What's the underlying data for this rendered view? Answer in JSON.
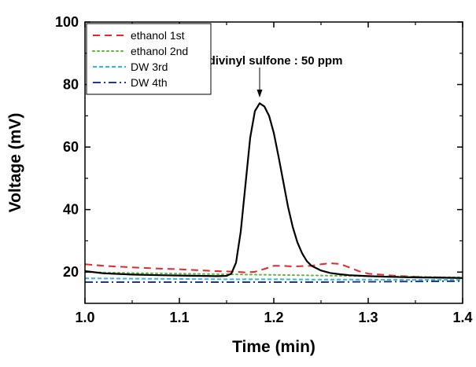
{
  "chart_data": {
    "type": "line",
    "title": "",
    "xlabel": "Time (min)",
    "ylabel": "Voltage (mV)",
    "xlim": [
      1.0,
      1.4
    ],
    "ylim": [
      10,
      100
    ],
    "xticks": [
      1.0,
      1.1,
      1.2,
      1.3,
      1.4
    ],
    "xtick_labels": [
      "1.0",
      "1.1",
      "1.2",
      "1.3",
      "1.4"
    ],
    "yticks": [
      20,
      40,
      60,
      80,
      100
    ],
    "ytick_labels": [
      "20",
      "40",
      "60",
      "80",
      "100"
    ],
    "grid": false,
    "legend_position": "top-left",
    "annotation": {
      "text": "divinyl sulfone : 50 ppm",
      "x": 1.185,
      "y": 74
    },
    "series": [
      {
        "name": "ethanol 1st",
        "color": "#e8262b",
        "dash": "dashed",
        "x": [
          1.0,
          1.02,
          1.05,
          1.08,
          1.1,
          1.12,
          1.14,
          1.15,
          1.16,
          1.17,
          1.18,
          1.19,
          1.2,
          1.21,
          1.22,
          1.23,
          1.24,
          1.25,
          1.26,
          1.27,
          1.28,
          1.29,
          1.3,
          1.33,
          1.36,
          1.4
        ],
        "values": [
          22.5,
          22.0,
          21.5,
          21.1,
          20.9,
          20.6,
          20.3,
          20.2,
          20.1,
          19.9,
          20.1,
          21.0,
          22.0,
          22.0,
          21.8,
          21.9,
          22.0,
          22.5,
          22.8,
          22.6,
          21.5,
          20.3,
          19.5,
          18.8,
          18.4,
          18.1
        ]
      },
      {
        "name": "ethanol 2nd",
        "color": "#5db83a",
        "dash": "dotted",
        "x": [
          1.0,
          1.05,
          1.1,
          1.15,
          1.2,
          1.25,
          1.3,
          1.35,
          1.4
        ],
        "values": [
          20.0,
          19.7,
          19.5,
          19.3,
          19.1,
          18.9,
          18.7,
          18.5,
          18.3
        ]
      },
      {
        "name": "DW 3rd",
        "color": "#35b7e6",
        "dash": "dash-short",
        "x": [
          1.0,
          1.05,
          1.1,
          1.15,
          1.2,
          1.25,
          1.3,
          1.35,
          1.4
        ],
        "values": [
          18.0,
          17.9,
          17.8,
          17.7,
          17.7,
          17.6,
          17.6,
          17.5,
          17.5
        ]
      },
      {
        "name": "DW 4th",
        "color": "#1d3a8a",
        "dash": "dash-dot",
        "x": [
          1.0,
          1.05,
          1.1,
          1.15,
          1.2,
          1.25,
          1.3,
          1.35,
          1.4
        ],
        "values": [
          16.8,
          16.8,
          16.8,
          16.8,
          16.8,
          16.8,
          16.9,
          17.0,
          17.1
        ]
      },
      {
        "name": "",
        "color": "#000000",
        "dash": "solid",
        "x": [
          1.0,
          1.02,
          1.05,
          1.08,
          1.1,
          1.12,
          1.14,
          1.15,
          1.155,
          1.16,
          1.165,
          1.17,
          1.175,
          1.18,
          1.185,
          1.19,
          1.195,
          1.2,
          1.205,
          1.21,
          1.215,
          1.22,
          1.225,
          1.23,
          1.235,
          1.24,
          1.25,
          1.26,
          1.27,
          1.28,
          1.3,
          1.32,
          1.35,
          1.38,
          1.4
        ],
        "values": [
          20.3,
          19.6,
          19.2,
          19.0,
          18.9,
          18.8,
          18.7,
          18.8,
          19.5,
          23.0,
          33.0,
          48.0,
          63.0,
          71.5,
          74.0,
          73.0,
          70.0,
          64.5,
          57.0,
          49.0,
          41.0,
          34.5,
          29.5,
          26.0,
          23.5,
          22.0,
          20.5,
          19.7,
          19.3,
          19.0,
          18.7,
          18.5,
          18.3,
          18.2,
          18.1
        ]
      }
    ]
  }
}
